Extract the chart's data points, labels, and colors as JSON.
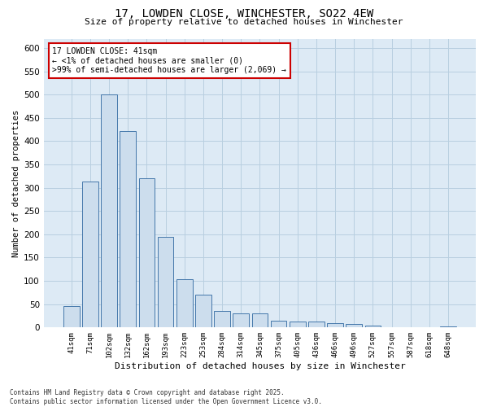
{
  "title_line1": "17, LOWDEN CLOSE, WINCHESTER, SO22 4EW",
  "title_line2": "Size of property relative to detached houses in Winchester",
  "xlabel": "Distribution of detached houses by size in Winchester",
  "ylabel": "Number of detached properties",
  "categories": [
    "41sqm",
    "71sqm",
    "102sqm",
    "132sqm",
    "162sqm",
    "193sqm",
    "223sqm",
    "253sqm",
    "284sqm",
    "314sqm",
    "345sqm",
    "375sqm",
    "405sqm",
    "436sqm",
    "466sqm",
    "496sqm",
    "527sqm",
    "557sqm",
    "587sqm",
    "618sqm",
    "648sqm"
  ],
  "values": [
    46,
    313,
    500,
    422,
    320,
    195,
    104,
    70,
    36,
    31,
    31,
    14,
    13,
    12,
    10,
    7,
    4,
    1,
    0,
    1,
    2
  ],
  "bar_color": "#ccdded",
  "bar_edge_color": "#4477aa",
  "annotation_box_text": "17 LOWDEN CLOSE: 41sqm\n← <1% of detached houses are smaller (0)\n>99% of semi-detached houses are larger (2,069) →",
  "annotation_box_color": "#ffffff",
  "annotation_box_edge_color": "#cc0000",
  "grid_color": "#b8cfe0",
  "background_color": "#ddeaf5",
  "ylim": [
    0,
    620
  ],
  "yticks": [
    0,
    50,
    100,
    150,
    200,
    250,
    300,
    350,
    400,
    450,
    500,
    550,
    600
  ],
  "footer_line1": "Contains HM Land Registry data © Crown copyright and database right 2025.",
  "footer_line2": "Contains public sector information licensed under the Open Government Licence v3.0."
}
